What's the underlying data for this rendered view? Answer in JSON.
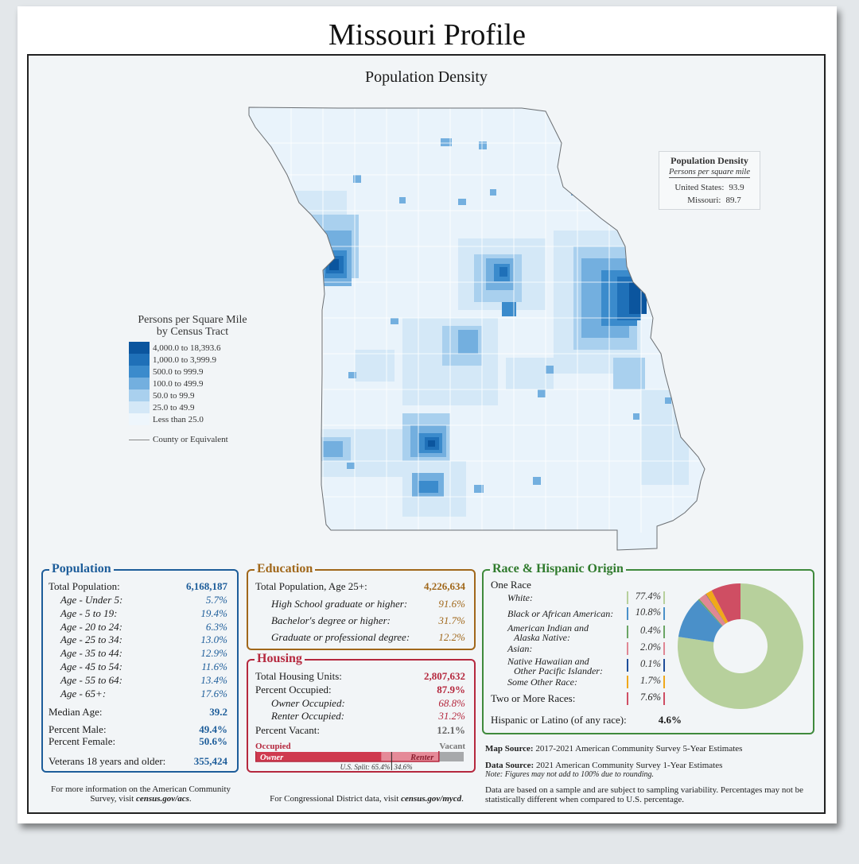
{
  "title": "Missouri Profile",
  "map": {
    "title": "Population Density",
    "density_box": {
      "heading": "Population Density",
      "subheading": "Persons per square mile",
      "us_label": "United States:",
      "us_value": "93.9",
      "mo_label": "Missouri:",
      "mo_value": "89.7"
    },
    "legend": {
      "title_line1": "Persons per Square Mile",
      "title_line2": "by Census Tract",
      "classes": [
        {
          "label": "4,000.0 to 18,393.6",
          "color": "#0b559e"
        },
        {
          "label": "1,000.0 to 3,999.9",
          "color": "#1f70b8"
        },
        {
          "label": "500.0 to 999.9",
          "color": "#3b8bcc"
        },
        {
          "label": "100.0 to 499.9",
          "color": "#73afdf"
        },
        {
          "label": "50.0 to 99.9",
          "color": "#a9d0ee"
        },
        {
          "label": "25.0 to 49.9",
          "color": "#d4e8f7"
        },
        {
          "label": "Less than 25.0",
          "color": "#eef6fc"
        }
      ],
      "county_label": "County or Equivalent"
    }
  },
  "population": {
    "title": "Population",
    "total_label": "Total Population:",
    "total_value": "6,168,187",
    "ages": [
      {
        "label": "Age - Under 5:",
        "value": "5.7%"
      },
      {
        "label": "Age - 5 to 19:",
        "value": "19.4%"
      },
      {
        "label": "Age - 20 to 24:",
        "value": "6.3%"
      },
      {
        "label": "Age - 25 to 34:",
        "value": "13.0%"
      },
      {
        "label": "Age - 35 to 44:",
        "value": "12.9%"
      },
      {
        "label": "Age - 45 to 54:",
        "value": "11.6%"
      },
      {
        "label": "Age - 55 to 64:",
        "value": "13.4%"
      },
      {
        "label": "Age - 65+:",
        "value": "17.6%"
      }
    ],
    "median_label": "Median Age:",
    "median_value": "39.2",
    "male_label": "Percent Male:",
    "male_value": "49.4%",
    "female_label": "Percent Female:",
    "female_value": "50.6%",
    "veterans_label": "Veterans 18 years and older:",
    "veterans_value": "355,424",
    "footnote_prefix": "For more information on the American Community Survey, visit ",
    "footnote_link": "census.gov/acs",
    "footnote_suffix": "."
  },
  "education": {
    "title": "Education",
    "total_label": "Total Population, Age 25+:",
    "total_value": "4,226,634",
    "rows": [
      {
        "label": "High School  graduate or higher:",
        "value": "91.6%"
      },
      {
        "label": "Bachelor's degree or higher:",
        "value": "31.7%"
      },
      {
        "label": "Graduate or professional degree:",
        "value": "12.2%"
      }
    ]
  },
  "housing": {
    "title": "Housing",
    "units_label": "Total Housing Units:",
    "units_value": "2,807,632",
    "occ_label": "Percent Occupied:",
    "occ_value": "87.9%",
    "owner_label": "Owner Occupied:",
    "owner_value": "68.8%",
    "renter_label": "Renter Occupied:",
    "renter_value": "31.2%",
    "vacant_label": "Percent Vacant:",
    "vacant_value": "12.1%",
    "bar": {
      "occupied_label": "Occupied",
      "vacant_label": "Vacant",
      "owner_label": "Owner",
      "renter_label": "Renter",
      "occupied_share": 0.879,
      "owner_share_of_occupied": 0.688,
      "us_split_label": "U.S. Split: 65.4%",
      "us_split_renter": "34.6%",
      "us_owner_share": 0.654
    },
    "footnote_prefix": "For Congressional District data, visit ",
    "footnote_link": "census.gov/mycd",
    "footnote_suffix": "."
  },
  "race": {
    "title": "Race & Hispanic Origin",
    "one_race_label": "One Race",
    "items": [
      {
        "label": "White:",
        "value": "77.4%",
        "color": "#b7d09c"
      },
      {
        "label": "Black or African American:",
        "value": "10.8%",
        "color": "#4a90c9"
      },
      {
        "label": "American Indian and\nAlaska Native:",
        "value": "0.4%",
        "color": "#6aa564"
      },
      {
        "label": "Asian:",
        "value": "2.0%",
        "color": "#e08794"
      },
      {
        "label": "Native Hawaiian and\nOther Pacific Islander:",
        "value": "0.1%",
        "color": "#1f4e9a"
      },
      {
        "label": "Some Other Race:",
        "value": "1.7%",
        "color": "#f0a81a"
      },
      {
        "label": "Two or More Races:",
        "value": "7.6%",
        "color": "#cf4e63"
      }
    ],
    "hispanic_label": "Hispanic or Latino (of any race):",
    "hispanic_value": "4.6%"
  },
  "sources": {
    "map_label": "Map Source:",
    "map_text": " 2017-2021 American Community Survey 5-Year Estimates",
    "data_label": "Data Source:",
    "data_text": " 2021 American Community Survey 1-Year Estimates",
    "note": "Note: Figures may not add to 100% due to rounding.",
    "disclaimer": "Data are based on a sample and are subject to sampling variability. Percentages may not be statistically different when compared to U.S. percentage."
  }
}
